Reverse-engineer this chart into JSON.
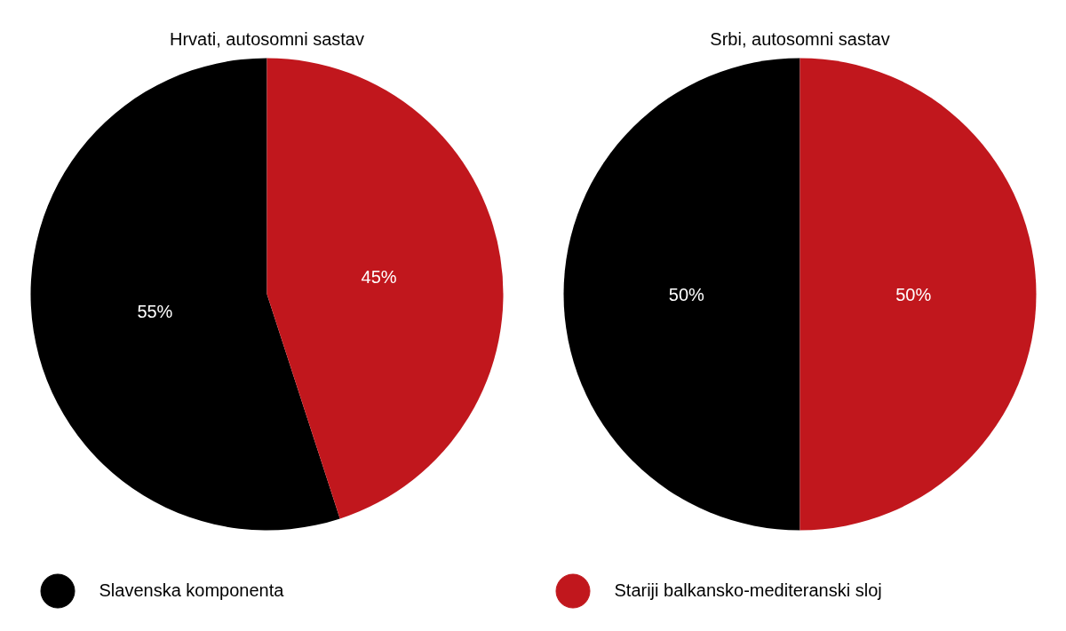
{
  "chart_data": [
    {
      "type": "pie",
      "title": "Hrvati, autosomni sastav",
      "categories": [
        "Slavenska komponenta",
        "Stariji balkansko-mediteranski sloj"
      ],
      "values": [
        55,
        45
      ],
      "colors": [
        "#000000",
        "#c1171d"
      ],
      "value_labels": [
        "55%",
        "45%"
      ],
      "legend": "bottom"
    },
    {
      "type": "pie",
      "title": "Srbi, autosomni sastav",
      "values": [
        50,
        50
      ],
      "colors": [
        "#000000",
        "#c1171d"
      ],
      "value_labels": [
        "50%",
        "50%"
      ]
    }
  ]
}
